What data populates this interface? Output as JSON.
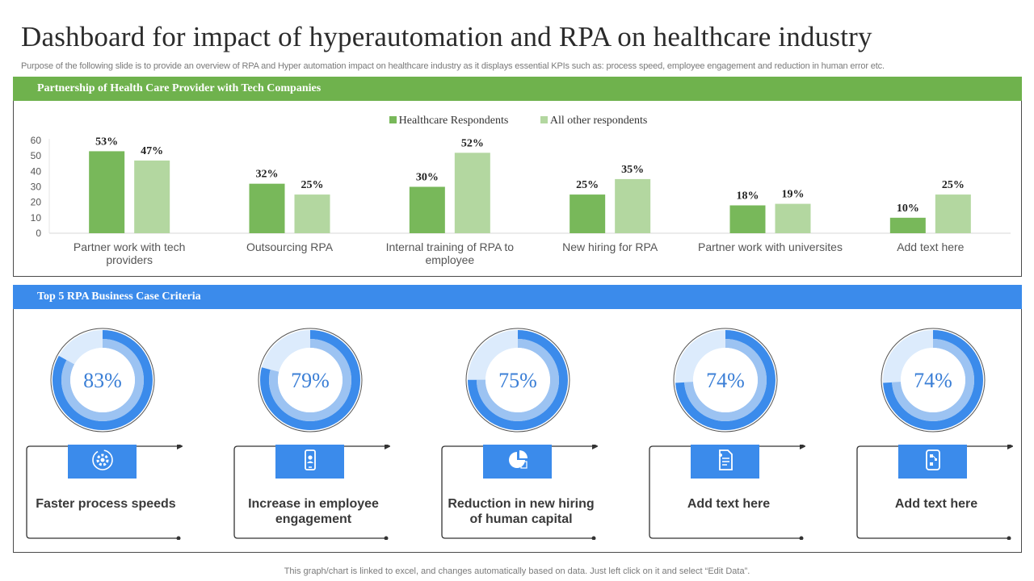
{
  "title": "Dashboard for impact of hyperautomation and RPA on healthcare industry",
  "subtitle": "Purpose of the following slide is to provide an overview of RPA and Hyper automation impact on healthcare industry as it displays essential KPIs such as: process speed, employee engagement and reduction in human error etc.",
  "top_panel": {
    "header": "Partnership  of Health Care Provider with Tech Companies"
  },
  "bottom_panel": {
    "header": "Top 5 RPA Business Case Criteria"
  },
  "colors": {
    "healthcare": "#78b85a",
    "other": "#b3d7a0",
    "blue": "#3b8beb",
    "blue_mid": "#9cc3f2",
    "blue_light": "#dcebfc"
  },
  "chart_data": {
    "type": "bar",
    "title": "Partnership  of Health Care Provider with Tech Companies",
    "categories": [
      "Partner work with tech providers",
      "Outsourcing RPA",
      "Internal training of RPA to employee",
      "New hiring for RPA",
      "Partner work with universites",
      "Add text here"
    ],
    "category_lines": [
      [
        "Partner work with tech",
        "providers"
      ],
      [
        "Outsourcing RPA"
      ],
      [
        "Internal training of RPA to",
        "employee"
      ],
      [
        "New hiring for RPA"
      ],
      [
        "Partner work with universites"
      ],
      [
        "Add text here"
      ]
    ],
    "series": [
      {
        "name": "Healthcare Respondents",
        "values": [
          53,
          32,
          30,
          25,
          18,
          10
        ],
        "labels": [
          "53%",
          "32%",
          "30%",
          "25%",
          "18%",
          "10%"
        ]
      },
      {
        "name": "All other respondents",
        "values": [
          47,
          25,
          52,
          35,
          19,
          25
        ],
        "labels": [
          "47%",
          "25%",
          "52%",
          "35%",
          "19%",
          "25%"
        ]
      }
    ],
    "ylim": [
      0,
      60
    ],
    "yticks": [
      0,
      10,
      20,
      30,
      40,
      50,
      60
    ],
    "xlabel": "",
    "ylabel": "",
    "legend": "top-center",
    "grid": false
  },
  "kpis": [
    {
      "value": 83,
      "value_label": "83%",
      "label": "Faster process speeds",
      "icon": "gear-icon"
    },
    {
      "value": 79,
      "value_label": "79%",
      "label": "Increase in employee engagement",
      "icon": "mobile-user-icon"
    },
    {
      "value": 75,
      "value_label": "75%",
      "label": "Reduction in new hiring of human capital",
      "icon": "pie-chart-icon"
    },
    {
      "value": 74,
      "value_label": "74%",
      "label": "Add text here",
      "icon": "document-icon"
    },
    {
      "value": 74,
      "value_label": "74%",
      "label": "Add text here",
      "icon": "workflow-icon"
    }
  ],
  "footer": "This graph/chart is linked to excel,  and changes automatically based on data. Just left click on it and select “Edit Data”."
}
